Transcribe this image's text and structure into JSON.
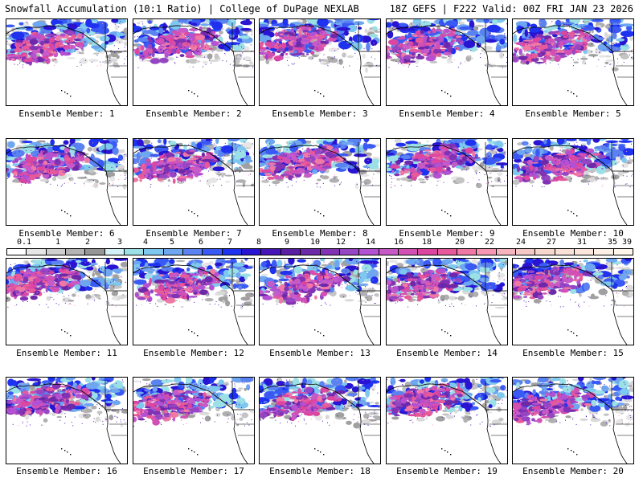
{
  "header": {
    "left": "Snowfall Accumulation (10:1 Ratio) | College of DuPage NEXLAB",
    "right": "18Z GEFS | F222 Valid: 00Z FRI JAN 23 2026"
  },
  "panels": [
    {
      "label": "Ensemble Member: 1"
    },
    {
      "label": "Ensemble Member: 2"
    },
    {
      "label": "Ensemble Member: 3"
    },
    {
      "label": "Ensemble Member: 4"
    },
    {
      "label": "Ensemble Member: 5"
    },
    {
      "label": "Ensemble Member: 6"
    },
    {
      "label": "Ensemble Member: 7"
    },
    {
      "label": "Ensemble Member: 8"
    },
    {
      "label": "Ensemble Member: 9"
    },
    {
      "label": "Ensemble Member: 10"
    },
    {
      "label": "Ensemble Member: 11"
    },
    {
      "label": "Ensemble Member: 12"
    },
    {
      "label": "Ensemble Member: 13"
    },
    {
      "label": "Ensemble Member: 14"
    },
    {
      "label": "Ensemble Member: 15"
    },
    {
      "label": "Ensemble Member: 16"
    },
    {
      "label": "Ensemble Member: 17"
    },
    {
      "label": "Ensemble Member: 18"
    },
    {
      "label": "Ensemble Member: 19"
    },
    {
      "label": "Ensemble Member: 20"
    }
  ],
  "colorbar": {
    "labels": [
      "0.1",
      "1",
      "2",
      "3",
      "4",
      "5",
      "6",
      "7",
      "8",
      "9",
      "10",
      "12",
      "14",
      "16",
      "18",
      "20",
      "22",
      "24",
      "27",
      "31",
      "35",
      "39"
    ],
    "colors": [
      "#ffffff",
      "#e6e6e6",
      "#cfcfcf",
      "#b4b4b4",
      "#969696",
      "#d2f0f5",
      "#9be0e6",
      "#7ec8f0",
      "#6ea6f0",
      "#5a82f0",
      "#3a5af5",
      "#1e32f0",
      "#2814d2",
      "#4614b9",
      "#5a1ea5",
      "#6e28aa",
      "#8232b4",
      "#9646c3",
      "#b450d2",
      "#c85ac8",
      "#d250b4",
      "#dc46a0",
      "#e65a9b",
      "#f078a5",
      "#f596b4",
      "#f5b4be",
      "#f5c8c8",
      "#f5d7cd",
      "#f8e1d7",
      "#fae6dc",
      "#fcefe6",
      "#fff5eb"
    ]
  }
}
